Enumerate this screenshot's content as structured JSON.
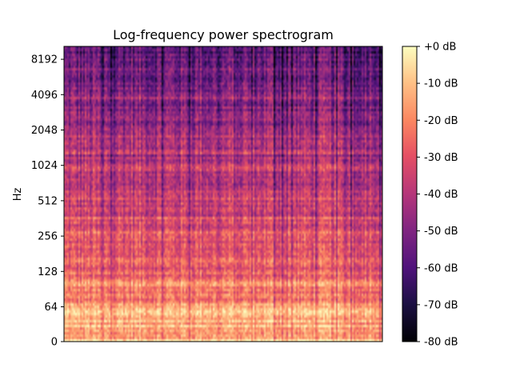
{
  "chart_data": {
    "type": "heatmap",
    "title": "Log-frequency power spectrogram",
    "xlabel": "",
    "ylabel": "Hz",
    "y_scale": "log2",
    "y_ticks": [
      "0",
      "64",
      "128",
      "256",
      "512",
      "1024",
      "2048",
      "4096",
      "8192"
    ],
    "colorbar": {
      "label": "",
      "colormap": "magma",
      "range_db": [
        -80,
        0
      ],
      "ticks": [
        "+0 dB",
        "-10 dB",
        "-20 dB",
        "-30 dB",
        "-40 dB",
        "-50 dB",
        "-60 dB",
        "-70 dB",
        "-80 dB"
      ]
    },
    "grid": false,
    "legend": "none"
  }
}
